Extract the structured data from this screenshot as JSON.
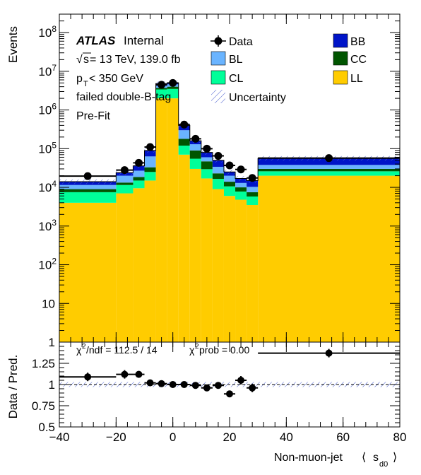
{
  "chart_data": [
    {
      "type": "bar",
      "stacked": true,
      "yscale": "log",
      "ylim": [
        1,
        300000000
      ],
      "xlim": [
        -40,
        80
      ],
      "ylabel": "Events",
      "y_ticks": [
        {
          "v": 1,
          "b": "1",
          "e": ""
        },
        {
          "v": 10,
          "b": "10",
          "e": ""
        },
        {
          "v": 100,
          "b": "10",
          "e": "2"
        },
        {
          "v": 1000,
          "b": "10",
          "e": "3"
        },
        {
          "v": 10000,
          "b": "10",
          "e": "4"
        },
        {
          "v": 100000,
          "b": "10",
          "e": "5"
        },
        {
          "v": 1000000,
          "b": "10",
          "e": "6"
        },
        {
          "v": 10000000,
          "b": "10",
          "e": "7"
        },
        {
          "v": 100000000,
          "b": "10",
          "e": "8"
        }
      ],
      "bin_edges": [
        -40,
        -20,
        -14,
        -10,
        -6,
        -2,
        2,
        6,
        10,
        14,
        18,
        22,
        26,
        30,
        80
      ],
      "series": [
        {
          "name": "LL",
          "color": "#ffcc00",
          "values": [
            4000,
            7000,
            9500,
            15000,
            2000000,
            2000000,
            70000,
            30000,
            17000,
            9000,
            6000,
            4800,
            3500,
            20000
          ]
        },
        {
          "name": "CL",
          "color": "#00ff99",
          "values": [
            3500,
            4500,
            5500,
            10000,
            1400000,
            1500000,
            50000,
            25000,
            12500,
            7500,
            4600,
            3000,
            2300,
            6000
          ]
        },
        {
          "name": "CC",
          "color": "#005500",
          "values": [
            1500,
            1800,
            3500,
            8000,
            300000,
            500000,
            60000,
            35000,
            17500,
            6500,
            3400,
            2200,
            1700,
            4000
          ]
        },
        {
          "name": "BL",
          "color": "#6ab4ff",
          "values": [
            2500,
            6700,
            8500,
            30000,
            500000,
            600000,
            120000,
            40000,
            13000,
            11000,
            6000,
            3000,
            2800,
            8000
          ]
        },
        {
          "name": "BB",
          "color": "#0014c8",
          "values": [
            2500,
            4000,
            9000,
            27000,
            600000,
            400000,
            100000,
            30000,
            20000,
            16000,
            5000,
            4000,
            4700,
            18000
          ]
        }
      ],
      "data": {
        "name": "Data",
        "x": [
          -30,
          -17,
          -12,
          -8,
          -4,
          0,
          4,
          8,
          12,
          16,
          20,
          24,
          28,
          55
        ],
        "y": [
          19500,
          28000,
          43000,
          110000,
          4500000,
          5000000,
          420000,
          180000,
          100000,
          65000,
          37000,
          29000,
          17500,
          57000
        ],
        "xerr": [
          10,
          3,
          2,
          2,
          2,
          2,
          2,
          2,
          2,
          2,
          2,
          2,
          2,
          25
        ]
      },
      "legend": {
        "placement": "top",
        "entries": [
          {
            "name": "Data",
            "style": "marker"
          },
          {
            "name": "BL",
            "color": "#6ab4ff"
          },
          {
            "name": "CL",
            "color": "#00ff99"
          },
          {
            "name": "Uncertainty",
            "style": "hatch"
          },
          {
            "name": "BB",
            "color": "#0014c8"
          },
          {
            "name": "CC",
            "color": "#005500"
          },
          {
            "name": "LL",
            "color": "#ffcc00"
          }
        ]
      },
      "annotations": {
        "atlas": "ATLAS",
        "internal": "Internal",
        "energy_prefix": "s",
        "energy_text": " = 13 TeV, 139.0 fb",
        "pt_p": "p",
        "pt_sub": "T",
        "pt_rest": " < 350 GeV",
        "tag_text": "failed double-B-tag",
        "fit_text": "Pre-Fit"
      }
    },
    {
      "type": "scatter",
      "ylabel": "Data / Pred.",
      "xlabel_main": "Non-muon-jet",
      "xlabel_lang": "⟨",
      "xlabel_s": "s",
      "xlabel_sub": "d0",
      "xlabel_rang": "⟩",
      "ylim": [
        0.5,
        1.5
      ],
      "xlim": [
        -40,
        80
      ],
      "y_ticks": [
        "0.5",
        "0.75",
        "1",
        "1.25"
      ],
      "y_tick_values": [
        0.5,
        0.75,
        1.0,
        1.25
      ],
      "x_ticks": [
        "−40",
        "−20",
        "0",
        "20",
        "40",
        "60",
        "80"
      ],
      "x_tick_values": [
        -40,
        -20,
        0,
        20,
        40,
        60,
        80
      ],
      "x": [
        -30,
        -17,
        -12,
        -8,
        -4,
        0,
        4,
        8,
        12,
        16,
        20,
        24,
        28,
        55
      ],
      "y": [
        1.09,
        1.12,
        1.12,
        1.02,
        1.01,
        1.0,
        1.0,
        0.99,
        0.96,
        0.99,
        0.89,
        1.05,
        0.96,
        1.37
      ],
      "xerr": [
        10,
        3,
        2,
        2,
        2,
        2,
        2,
        2,
        2,
        2,
        2,
        2,
        2,
        25
      ],
      "yerr": [
        0.05,
        0.05,
        0.04,
        0.02,
        0.01,
        0.01,
        0.01,
        0.015,
        0.02,
        0.03,
        0.03,
        0.05,
        0.05,
        0.05
      ],
      "unc_band": [
        0.97,
        1.03
      ],
      "stats": {
        "chi2_prefix": "χ",
        "chi2_sup": "2",
        "chi2_text": "/ndf = 112.5 / 14",
        "prob_prefix": "χ",
        "prob_sup": "2",
        "prob_text": "prob = 0.00"
      }
    }
  ]
}
